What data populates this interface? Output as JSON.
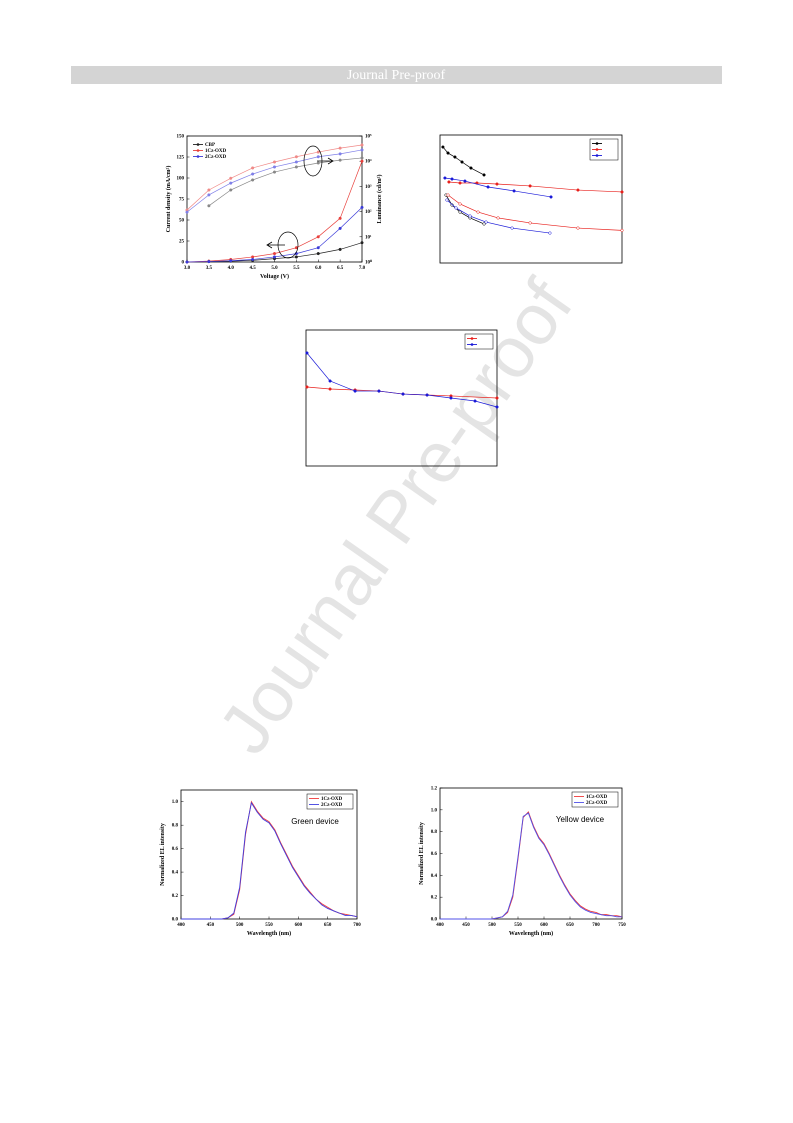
{
  "header": {
    "title": "Journal Pre-proof"
  },
  "watermark": "Journal Pre-proof",
  "chart_data": [
    {
      "type": "line",
      "xlabel": "Voltage (V)",
      "ylabel": "Current density (mA/cm²)",
      "y2label": "Luminance (cd/m²)",
      "x": [
        3.0,
        3.5,
        4.0,
        4.5,
        5.0,
        5.5,
        6.0,
        6.5,
        7.0
      ],
      "xlim": [
        3.0,
        7.0
      ],
      "xticks": [
        {
          "value": 3.0,
          "label": "3.0"
        },
        3.5,
        {
          "value": 4.0,
          "label": "4.0"
        },
        4.5,
        {
          "value": 5.0,
          "label": "5.0"
        },
        5.5,
        {
          "value": 6.0,
          "label": "6.0"
        },
        6.5,
        {
          "value": 7.0,
          "label": "7.0"
        }
      ],
      "ylim": [
        0,
        150
      ],
      "yticks": [
        0,
        25,
        50,
        75,
        100,
        125,
        150
      ],
      "y2lim": [
        1,
        100000
      ],
      "y2scale": "log",
      "y2ticks": [
        {
          "value": 1,
          "label": "10⁰"
        },
        {
          "value": 10,
          "label": "10¹"
        },
        {
          "value": 100,
          "label": "10²"
        },
        {
          "value": 1000,
          "label": "10³"
        },
        {
          "value": 10000,
          "label": "10⁴"
        },
        {
          "value": 100000,
          "label": "10⁵"
        }
      ],
      "legend": "upper left",
      "series": [
        {
          "name": "CBP",
          "color": "#222222",
          "values": [
            0,
            0.5,
            1,
            2,
            4,
            6,
            10,
            15,
            23
          ]
        },
        {
          "name": "1Cz-OXD",
          "color": "#e8403c",
          "values": [
            0,
            1,
            3,
            6,
            10,
            17,
            30,
            52,
            120
          ]
        },
        {
          "name": "2Cz-OXD",
          "color": "#3a3ad8",
          "values": [
            0,
            0.5,
            1.5,
            3,
            6,
            10,
            17,
            40,
            65
          ]
        },
        {
          "color": "#888888",
          "axis": "y2",
          "values": [
            null,
            170,
            720,
            1800,
            3700,
            5900,
            8500,
            11000,
            13500
          ]
        },
        {
          "color": "#f08a88",
          "axis": "y2",
          "values": [
            115,
            720,
            2100,
            5400,
            9300,
            15000,
            23000,
            33000,
            44000
          ]
        },
        {
          "color": "#8080e8",
          "axis": "y2",
          "values": [
            95,
            460,
            1350,
            3100,
            5900,
            9300,
            15000,
            19500,
            28000
          ]
        }
      ]
    },
    {
      "type": "line",
      "xlim": [
        0,
        100
      ],
      "ylim": [
        0,
        100
      ],
      "legend": "upper right",
      "series": [
        {
          "color": "#000000",
          "marker": "filled",
          "x": [
            1.6,
            4.4,
            8.2,
            12.1,
            17,
            24.2
          ],
          "values": [
            90.6,
            85.9,
            82.8,
            78.9,
            74.2,
            68.8
          ]
        },
        {
          "color": "#e8201c",
          "marker": "filled",
          "x": [
            4.9,
            11,
            20.3,
            31.3,
            49.5,
            75.8,
            100
          ],
          "values": [
            63.3,
            62.5,
            62.5,
            61.7,
            60.2,
            57,
            55.5
          ]
        },
        {
          "color": "#1a1ad8",
          "marker": "filled",
          "x": [
            2.7,
            6.6,
            13.7,
            26.4,
            40.7,
            61
          ],
          "values": [
            66.4,
            65.6,
            64,
            59.4,
            56.3,
            51.6
          ]
        },
        {
          "color": "#000000",
          "marker": "open",
          "x": [
            3.3,
            6.6,
            11,
            16.5,
            24.2
          ],
          "values": [
            53.1,
            45.3,
            39.8,
            35.2,
            30.5
          ]
        },
        {
          "color": "#e8201c",
          "marker": "open",
          "x": [
            4.4,
            11,
            20.9,
            31.9,
            49.5,
            75.8,
            100
          ],
          "values": [
            53.1,
            46.1,
            39.8,
            35.2,
            31.3,
            27.3,
            25.5
          ]
        },
        {
          "color": "#1a1ad8",
          "marker": "open",
          "x": [
            3.8,
            8.8,
            16.5,
            25.3,
            39.6,
            60.4
          ],
          "values": [
            49.2,
            43,
            36.7,
            32,
            27.3,
            23.4
          ]
        }
      ]
    },
    {
      "type": "line",
      "xlim": [
        0,
        100
      ],
      "ylim": [
        0,
        100
      ],
      "legend": "upper right",
      "series": [
        {
          "color": "#e8201c",
          "marker": "filled",
          "x": [
            0.5,
            12.6,
            25.7,
            38.2,
            50.8,
            63.4,
            75.9,
            100
          ],
          "values": [
            58.1,
            56.6,
            55.9,
            55.1,
            52.9,
            52.2,
            51.5,
            50
          ]
        },
        {
          "color": "#1a1ad8",
          "marker": "filled",
          "x": [
            0.5,
            12.6,
            25.7,
            38.2,
            50.8,
            63.4,
            75.9,
            88.5,
            100
          ],
          "values": [
            83.1,
            62.5,
            55.1,
            55.1,
            52.9,
            52.2,
            50,
            47.8,
            43.4
          ]
        }
      ]
    },
    {
      "type": "line",
      "xlabel": "Wavelength (nm)",
      "ylabel": "Normalized EL intensity",
      "annotation": "Green device",
      "x": [
        400,
        410,
        420,
        430,
        440,
        450,
        460,
        470,
        480,
        490,
        500,
        510,
        520,
        530,
        540,
        550,
        560,
        570,
        580,
        590,
        600,
        610,
        620,
        630,
        640,
        650,
        660,
        670,
        680,
        690,
        700
      ],
      "xlim": [
        400,
        700
      ],
      "xticks": [
        400,
        450,
        500,
        550,
        600,
        650,
        700
      ],
      "ylim": [
        0,
        1.1
      ],
      "yticks": [
        {
          "value": 0,
          "label": "0.0"
        },
        0.2,
        0.4,
        0.6,
        0.8,
        {
          "value": 1,
          "label": "1.0"
        }
      ],
      "legend": "upper right",
      "series": [
        {
          "name": "1Cz-OXD",
          "color": "#f03a3a",
          "values": [
            0,
            0,
            0,
            0,
            0,
            0,
            0,
            0,
            0.01,
            0.04,
            0.25,
            0.72,
            1.0,
            0.92,
            0.86,
            0.83,
            0.76,
            0.65,
            0.55,
            0.45,
            0.37,
            0.29,
            0.23,
            0.17,
            0.13,
            0.1,
            0.07,
            0.05,
            0.04,
            0.03,
            0.02
          ]
        },
        {
          "name": "2Cz-OXD",
          "color": "#4040e0",
          "values": [
            0,
            0,
            0,
            0,
            0,
            0,
            0,
            0,
            0.01,
            0.05,
            0.27,
            0.74,
            0.99,
            0.91,
            0.85,
            0.82,
            0.75,
            0.64,
            0.54,
            0.44,
            0.36,
            0.28,
            0.22,
            0.17,
            0.12,
            0.09,
            0.07,
            0.05,
            0.03,
            0.03,
            0.02
          ]
        }
      ]
    },
    {
      "type": "line",
      "xlabel": "Wavelength (nm)",
      "ylabel": "Normalized EL intensity",
      "annotation": "Yellow device",
      "x": [
        400,
        410,
        420,
        430,
        440,
        450,
        460,
        470,
        480,
        490,
        500,
        510,
        520,
        530,
        540,
        550,
        560,
        570,
        580,
        590,
        600,
        610,
        620,
        630,
        640,
        650,
        660,
        670,
        680,
        690,
        700,
        710,
        720,
        730,
        740,
        750
      ],
      "xlim": [
        400,
        750
      ],
      "xticks": [
        400,
        450,
        500,
        550,
        600,
        650,
        700,
        750
      ],
      "ylim": [
        0,
        1.2
      ],
      "yticks": [
        {
          "value": 0,
          "label": "0.0"
        },
        0.2,
        0.4,
        0.6,
        0.8,
        {
          "value": 1,
          "label": "1.0"
        },
        1.2
      ],
      "legend": "upper right",
      "series": [
        {
          "name": "1Cz-OXD",
          "color": "#f03a3a",
          "values": [
            0,
            0,
            0,
            0,
            0,
            0,
            0,
            0,
            0,
            0,
            0,
            0.01,
            0.02,
            0.06,
            0.2,
            0.55,
            0.93,
            0.98,
            0.85,
            0.75,
            0.69,
            0.6,
            0.5,
            0.4,
            0.31,
            0.23,
            0.17,
            0.12,
            0.09,
            0.07,
            0.06,
            0.04,
            0.04,
            0.03,
            0.03,
            0.02
          ]
        },
        {
          "name": "2Cz-OXD",
          "color": "#5050e8",
          "values": [
            0,
            0,
            0,
            0,
            0,
            0,
            0,
            0,
            0,
            0,
            0,
            0.01,
            0.02,
            0.07,
            0.22,
            0.57,
            0.94,
            0.97,
            0.84,
            0.74,
            0.68,
            0.59,
            0.49,
            0.39,
            0.3,
            0.22,
            0.16,
            0.11,
            0.08,
            0.06,
            0.05,
            0.04,
            0.03,
            0.03,
            0.02,
            0.02
          ]
        }
      ]
    }
  ]
}
